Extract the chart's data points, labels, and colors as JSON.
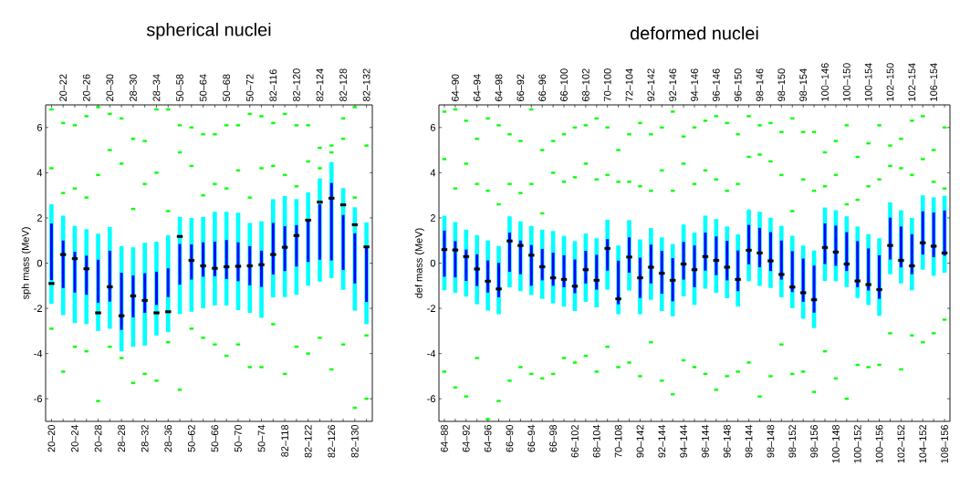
{
  "chart_data": [
    {
      "type": "bar",
      "title": "spherical nuclei",
      "ylabel": "sph mass (MeV)",
      "categories": [
        "20–20",
        "20–22",
        "20–24",
        "20–26",
        "20–28",
        "20–30",
        "28–28",
        "28–30",
        "28–32",
        "28–34",
        "28–36",
        "50–58",
        "50–62",
        "50–64",
        "50–66",
        "50–68",
        "50–70",
        "50–72",
        "50–74",
        "82–116",
        "82–118",
        "82–120",
        "82–122",
        "82–124",
        "82–126",
        "82–128",
        "82–130",
        "82–132"
      ],
      "ylim": [
        -7,
        7
      ],
      "yticks": [
        -6,
        -4,
        -2,
        0,
        2,
        4,
        6
      ],
      "series": [
        {
          "type": "bar",
          "color": "#00ffff",
          "base": [
            -1.8,
            -2.3,
            -2.65,
            -2.7,
            -3.0,
            -2.9,
            -3.9,
            -3.7,
            -3.65,
            -3.2,
            -3.05,
            -2.25,
            -2.15,
            -2.0,
            -1.87,
            -1.87,
            -2.08,
            -2.2,
            -2.42,
            -1.52,
            -1.5,
            -1.4,
            -1.0,
            -0.82,
            -0.67,
            -1.18,
            -2.1,
            -2.7
          ],
          "values": [
            4.4,
            4.4,
            4.3,
            4.2,
            4.3,
            4.5,
            4.65,
            4.4,
            4.55,
            4.15,
            4.28,
            4.3,
            4.15,
            4.05,
            4.14,
            4.14,
            4.31,
            3.98,
            4.27,
            4.35,
            4.47,
            4.23,
            4.13,
            4.57,
            5.14,
            4.5,
            4.57,
            4.5
          ]
        },
        {
          "type": "bar",
          "color": "#0000ff",
          "base": [
            -0.75,
            -1.1,
            -1.3,
            -1.4,
            -1.75,
            -1.7,
            -2.95,
            -2.4,
            -2.2,
            -1.85,
            -1.5,
            -0.95,
            -0.73,
            -0.6,
            -0.58,
            -0.7,
            -0.8,
            -0.98,
            -1.05,
            -0.5,
            -0.35,
            -0.15,
            0.05,
            0.15,
            0.12,
            -0.3,
            -0.9,
            -1.72
          ],
          "values": [
            2.5,
            2.1,
            1.8,
            1.73,
            1.9,
            2.25,
            2.52,
            1.85,
            1.75,
            1.47,
            1.27,
            1.8,
            1.56,
            1.52,
            1.53,
            1.72,
            1.72,
            1.73,
            1.6,
            2.28,
            1.98,
            1.83,
            1.85,
            2.45,
            3.43,
            2.43,
            2.22,
            2.44
          ]
        },
        {
          "type": "scatter",
          "color": "#00ff00",
          "x": [
            "20–20",
            "20–20",
            "20–20",
            "20–22",
            "20–22",
            "20–22",
            "20–24",
            "20–24",
            "20–24",
            "20–26",
            "20–26",
            "20–26",
            "20–28",
            "20–28",
            "20–28",
            "20–30",
            "20–30",
            "20–30",
            "28–28",
            "28–28",
            "28–28",
            "28–30",
            "28–30",
            "28–30",
            "28–32",
            "28–32",
            "28–32",
            "28–34",
            "28–34",
            "28–34",
            "28–36",
            "28–36",
            "28–36",
            "50–58",
            "50–58",
            "50–58",
            "50–62",
            "50–62",
            "50–62",
            "50–64",
            "50–64",
            "50–64",
            "50–66",
            "50–66",
            "50–66",
            "50–68",
            "50–68",
            "50–68",
            "50–70",
            "50–70",
            "50–70",
            "50–72",
            "50–72",
            "50–72",
            "50–74",
            "50–74",
            "50–74",
            "82–116",
            "82–116",
            "82–116",
            "82–118",
            "82–118",
            "82–118",
            "82–120",
            "82–120",
            "82–120",
            "82–122",
            "82–122",
            "82–122",
            "82–124",
            "82–124",
            "82–124",
            "82–126",
            "82–126",
            "82–126",
            "82–128",
            "82–128",
            "82–128",
            "82–130",
            "82–130",
            "82–130",
            "82–132",
            "82–132",
            "82–132"
          ],
          "values": [
            6.8,
            4.2,
            -2.9,
            6.2,
            3.1,
            -4.8,
            6.1,
            3.3,
            -3.7,
            6.5,
            2.9,
            -3.9,
            6.9,
            3.9,
            -6.1,
            6.6,
            5.0,
            -3.7,
            6.4,
            4.4,
            -4.2,
            5.5,
            2.4,
            -5.3,
            5.4,
            3.5,
            -4.9,
            6.8,
            4.0,
            -5.2,
            6.8,
            2.3,
            -3.5,
            6.1,
            4.9,
            -5.6,
            6.0,
            4.3,
            -2.9,
            5.7,
            3.0,
            -3.3,
            5.7,
            3.5,
            -3.6,
            6.1,
            3.3,
            -4.1,
            6.1,
            4.1,
            -3.6,
            6.6,
            2.9,
            -4.6,
            6.5,
            4.2,
            -4.6,
            6.2,
            4.3,
            -2.7,
            6.6,
            3.9,
            -4.9,
            6.1,
            3.4,
            -3.7,
            6.1,
            4.5,
            -4.0,
            5.1,
            4.2,
            -3.3,
            5.2,
            4.9,
            -4.7,
            6.4,
            5.5,
            -3.6,
            6.9,
            2.9,
            -6.4,
            5.2,
            -3.2,
            -6.0
          ]
        },
        {
          "type": "scatter",
          "color": "#000000",
          "values": [
            -0.9,
            0.38,
            0.2,
            -0.25,
            -2.2,
            -1.05,
            -2.33,
            -1.45,
            -1.65,
            -2.2,
            -2.15,
            1.18,
            0.12,
            -0.12,
            -0.23,
            -0.16,
            -0.14,
            -0.12,
            -0.07,
            0.38,
            0.7,
            1.22,
            1.9,
            2.7,
            2.87,
            2.58,
            1.7,
            0.72
          ]
        }
      ]
    },
    {
      "type": "bar",
      "title": "deformed nuclei",
      "ylabel": "def mass (MeV)",
      "categories": [
        "64–88",
        "64–90",
        "64–92",
        "64–94",
        "64–96",
        "64–98",
        "66–90",
        "66–92",
        "66–94",
        "66–96",
        "66–98",
        "66–100",
        "66–102",
        "68–102",
        "68–104",
        "70–100",
        "70–108",
        "72–104",
        "90–142",
        "92–142",
        "92–144",
        "92–146",
        "94–144",
        "94–146",
        "96–144",
        "96–146",
        "96–148",
        "96–150",
        "98–144",
        "98–146",
        "98–148",
        "98–150",
        "98–152",
        "98–154",
        "98–156",
        "100–146",
        "100–148",
        "100–150",
        "100–152",
        "100–154",
        "100–156",
        "102–150",
        "102–152",
        "102–154",
        "104–152",
        "106–154",
        "108–156"
      ],
      "ylim": [
        -7,
        7
      ],
      "yticks": [
        -6,
        -4,
        -2,
        0,
        2,
        4,
        6
      ],
      "series": [
        {
          "type": "bar",
          "color": "#00ffff",
          "base": [
            -1.2,
            -1.31,
            -1.48,
            -1.82,
            -2.1,
            -2.26,
            -1.07,
            -1.24,
            -1.41,
            -1.58,
            -1.78,
            -1.92,
            -2.12,
            -1.71,
            -1.96,
            -1.17,
            -2.26,
            -1.21,
            -2.26,
            -1.62,
            -2.12,
            -2.35,
            -1.47,
            -1.85,
            -1.13,
            -1.31,
            -1.55,
            -1.92,
            -0.8,
            -1.01,
            -1.1,
            -1.51,
            -1.99,
            -2.46,
            -2.87,
            -0.79,
            -0.8,
            -1.06,
            -1.54,
            -1.85,
            -2.33,
            -0.49,
            -0.9,
            -1.2,
            -0.29,
            -0.56,
            -0.42
          ],
          "values": [
            3.3,
            3.13,
            2.96,
            3.06,
            3.1,
            3.02,
            3.14,
            3.09,
            3.06,
            3.06,
            3.2,
            3.13,
            3.09,
            3.02,
            3.06,
            3.09,
            3.04,
            3.11,
            3.31,
            3.17,
            3.26,
            3.19,
            3.18,
            3.2,
            3.23,
            3.26,
            3.17,
            3.19,
            3.17,
            3.28,
            3.11,
            3.16,
            3.2,
            3.24,
            3.43,
            3.25,
            3.14,
            3.13,
            3.16,
            3.13,
            3.43,
            3.18,
            3.24,
            3.2,
            3.29,
            3.47,
            3.4
          ]
        },
        {
          "type": "bar",
          "color": "#0000ff",
          "base": [
            -0.6,
            -0.63,
            -0.79,
            -1.01,
            -1.3,
            -1.51,
            -0.38,
            -0.49,
            -1.0,
            -0.76,
            -1.0,
            -1.07,
            -1.33,
            -0.9,
            -1.17,
            -0.33,
            -1.82,
            -0.42,
            -1.54,
            -0.9,
            -1.35,
            -1.69,
            -0.73,
            -1.06,
            -0.33,
            -0.53,
            -0.76,
            -1.24,
            -0.05,
            -0.18,
            -0.35,
            -0.73,
            -1.28,
            -1.71,
            -2.19,
            -0.04,
            -0.12,
            -0.35,
            -1.07,
            -1.21,
            -1.58,
            0.16,
            -0.19,
            -0.49,
            0.38,
            0.26,
            0.33
          ],
          "values": [
            2.04,
            1.6,
            1.39,
            1.4,
            1.42,
            1.52,
            1.73,
            1.49,
            1.8,
            1.39,
            1.46,
            1.42,
            1.49,
            1.44,
            1.54,
            1.39,
            1.93,
            1.56,
            1.78,
            1.72,
            1.89,
            1.91,
            1.67,
            1.84,
            1.68,
            1.71,
            1.74,
            1.8,
            1.74,
            1.74,
            1.72,
            1.73,
            1.81,
            1.91,
            2.08,
            1.8,
            1.78,
            1.72,
            2.04,
            1.86,
            1.93,
            1.85,
            1.81,
            1.77,
            1.91,
            1.98,
            2.0
          ]
        },
        {
          "type": "scatter",
          "color": "#00ff00",
          "x": [
            "64–88",
            "64–88",
            "64–88",
            "64–90",
            "64–90",
            "64–90",
            "64–92",
            "64–92",
            "64–92",
            "64–94",
            "64–94",
            "64–94",
            "64–96",
            "64–96",
            "64–96",
            "64–98",
            "64–98",
            "64–98",
            "66–90",
            "66–90",
            "66–90",
            "66–92",
            "66–92",
            "66–92",
            "66–94",
            "66–94",
            "66–94",
            "66–96",
            "66–96",
            "66–96",
            "66–98",
            "66–98",
            "66–98",
            "66–100",
            "66–100",
            "66–100",
            "66–102",
            "66–102",
            "66–102",
            "68–102",
            "68–102",
            "68–102",
            "68–104",
            "68–104",
            "68–104",
            "70–100",
            "70–100",
            "70–100",
            "70–108",
            "70–108",
            "70–108",
            "72–104",
            "72–104",
            "72–104",
            "90–142",
            "90–142",
            "90–142",
            "92–142",
            "92–142",
            "92–142",
            "92–144",
            "92–144",
            "92–144",
            "92–146",
            "92–146",
            "92–146",
            "94–144",
            "94–144",
            "94–144",
            "94–146",
            "94–146",
            "94–146",
            "96–144",
            "96–144",
            "96–144",
            "96–146",
            "96–146",
            "96–146",
            "96–148",
            "96–148",
            "96–148",
            "96–150",
            "96–150",
            "96–150",
            "98–144",
            "98–144",
            "98–144",
            "98–146",
            "98–146",
            "98–146",
            "98–148",
            "98–148",
            "98–148",
            "98–150",
            "98–150",
            "98–150",
            "98–152",
            "98–152",
            "98–152",
            "98–154",
            "98–154",
            "98–154",
            "98–156",
            "98–156",
            "98–156",
            "100–146",
            "100–146",
            "100–146",
            "100–148",
            "100–148",
            "100–148",
            "100–150",
            "100–150",
            "100–150",
            "100–152",
            "100–152",
            "100–152",
            "100–154",
            "100–154",
            "100–154",
            "100–156",
            "100–156",
            "100–156",
            "102–150",
            "102–150",
            "102–150",
            "102–152",
            "102–152",
            "102–152",
            "102–154",
            "102–154",
            "102–154",
            "104–152",
            "104–152",
            "104–152",
            "106–154",
            "106–154",
            "106–154",
            "108–156",
            "108–156",
            "108–156"
          ],
          "values": [
            6.7,
            4.6,
            -4.8,
            6.8,
            3.3,
            -5.5,
            6.3,
            4.4,
            -5.9,
            5.5,
            3.5,
            -4.2,
            6.4,
            3.2,
            -6.9,
            6.1,
            2.6,
            -6.1,
            5.7,
            3.5,
            -5.2,
            5.4,
            3.1,
            -4.6,
            6.8,
            3.5,
            -4.9,
            5.0,
            2.2,
            -5.1,
            5.4,
            4.0,
            -4.9,
            5.7,
            3.6,
            -4.2,
            6.0,
            3.8,
            -4.4,
            6.1,
            4.4,
            -4.1,
            6.4,
            3.7,
            -4.8,
            6.0,
            3.9,
            -3.7,
            5.0,
            3.6,
            -4.6,
            5.7,
            3.6,
            -4.4,
            6.2,
            3.4,
            -5.0,
            5.7,
            3.2,
            -3.5,
            6.0,
            4.1,
            -5.2,
            6.7,
            3.2,
            -5.8,
            5.6,
            4.4,
            -4.3,
            6.0,
            3.5,
            -4.6,
            6.3,
            4.1,
            -4.9,
            6.5,
            3.7,
            -5.6,
            6.2,
            3.2,
            -5.0,
            5.7,
            3.5,
            -4.8,
            6.5,
            4.7,
            -4.4,
            6.1,
            4.8,
            -5.9,
            6.2,
            4.5,
            -5.0,
            5.8,
            3.9,
            -3.6,
            6.4,
            2.3,
            -4.9,
            5.8,
            3.7,
            -4.8,
            5.8,
            3.2,
            -5.7,
            4.9,
            3.4,
            -3.9,
            5.4,
            3.9,
            -5.1,
            6.1,
            2.6,
            -6.0,
            4.7,
            2.8,
            -4.5,
            5.3,
            3.4,
            -4.6,
            6.1,
            3.7,
            -4.5,
            5.2,
            4.3,
            -3.1,
            5.5,
            4.2,
            -4.7,
            6.3,
            3.9,
            -3.2,
            6.5,
            4.6,
            -3.5,
            5.0,
            3.6,
            -3.1,
            6.0,
            3.3,
            -2.5
          ]
        },
        {
          "type": "scatter",
          "color": "#000000",
          "values": [
            0.6,
            0.58,
            0.29,
            -0.26,
            -0.8,
            -1.14,
            0.98,
            0.78,
            0.35,
            -0.16,
            -0.65,
            -0.72,
            -1.02,
            -0.29,
            -0.76,
            0.65,
            -1.58,
            0.27,
            -0.65,
            -0.18,
            -0.45,
            -0.76,
            -0.04,
            -0.29,
            0.29,
            0.12,
            -0.18,
            -0.72,
            0.57,
            0.45,
            0.1,
            -0.5,
            -1.06,
            -1.31,
            -1.62,
            0.69,
            0.49,
            -0.04,
            -0.79,
            -0.95,
            -1.17,
            0.78,
            0.12,
            -0.12,
            0.9,
            0.75,
            0.45
          ]
        }
      ]
    }
  ]
}
